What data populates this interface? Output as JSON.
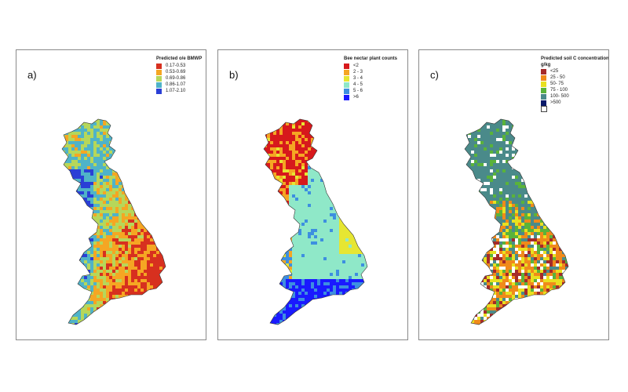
{
  "panels": [
    {
      "label": "a)",
      "legend": {
        "title": "Predicted o/e BMWP",
        "items": [
          {
            "label": "0.17-0.53",
            "color": "#d7301f"
          },
          {
            "label": "0.53-0.69",
            "color": "#f5a623"
          },
          {
            "label": "0.69-0.86",
            "color": "#b6d75a"
          },
          {
            "label": "0.86-1.07",
            "color": "#4fb3c8"
          },
          {
            "label": "1.07-2.10",
            "color": "#2a3fd6"
          }
        ]
      }
    },
    {
      "label": "b)",
      "legend": {
        "title": "Bee nectar plant counts",
        "items": [
          {
            "label": "<2",
            "color": "#d7191c"
          },
          {
            "label": "2 - 3",
            "color": "#f5a623"
          },
          {
            "label": "3 - 4",
            "color": "#e6e632"
          },
          {
            "label": "4 - 5",
            "color": "#8fe8c8"
          },
          {
            "label": "5 - 6",
            "color": "#3d8fe0"
          },
          {
            "label": ">6",
            "color": "#1a1aff"
          }
        ]
      }
    },
    {
      "label": "c)",
      "legend": {
        "title": "Predicted soil C concentration",
        "unit": "g/kg",
        "items": [
          {
            "label": "<25",
            "color": "#a52a2a"
          },
          {
            "label": "25 - 50",
            "color": "#f08a1a"
          },
          {
            "label": "50- 75",
            "color": "#e8e020"
          },
          {
            "label": "75 - 100",
            "color": "#5ab33a"
          },
          {
            "label": "100- 500",
            "color": "#4a8a8a"
          },
          {
            "label": ">500",
            "color": "#0a1a6a"
          },
          {
            "label": "",
            "color": "#ffffff"
          }
        ]
      }
    }
  ]
}
